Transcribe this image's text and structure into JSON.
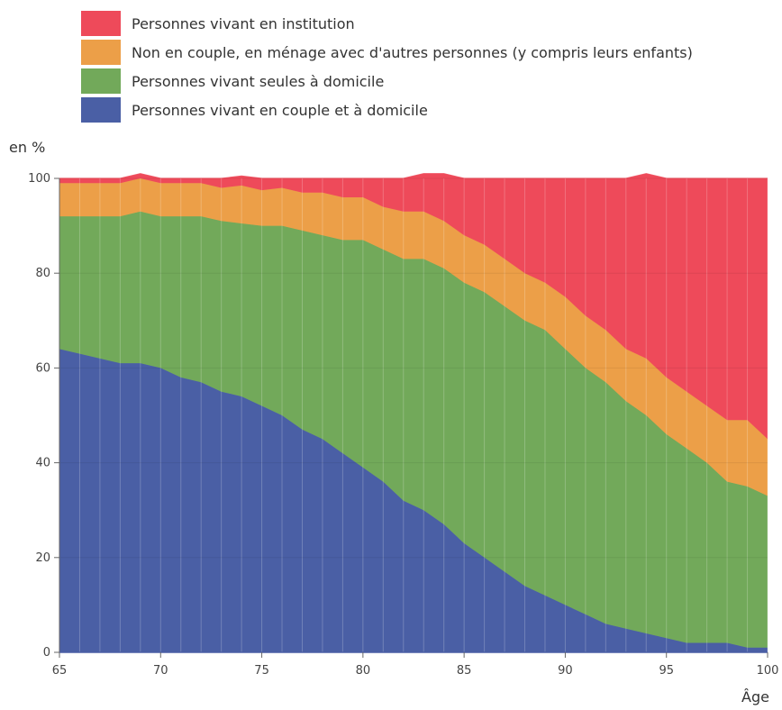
{
  "chart_data": {
    "type": "area",
    "stacked": true,
    "title": "",
    "ylabel": "en %",
    "xlabel": "Âge",
    "xlim": [
      65,
      100
    ],
    "ylim": [
      0,
      100
    ],
    "x_ticks": [
      65,
      70,
      75,
      80,
      85,
      90,
      95,
      100
    ],
    "y_ticks": [
      0,
      20,
      40,
      60,
      80,
      100
    ],
    "grid": "vertical",
    "legend_position": "top-left",
    "x": [
      65,
      66,
      67,
      68,
      69,
      70,
      71,
      72,
      73,
      74,
      75,
      76,
      77,
      78,
      79,
      80,
      81,
      82,
      83,
      84,
      85,
      86,
      87,
      88,
      89,
      90,
      91,
      92,
      93,
      94,
      95,
      96,
      97,
      98,
      99,
      100
    ],
    "series": [
      {
        "name": "Personnes vivant en couple et à domicile",
        "color": "#4a5fa5",
        "values": [
          64,
          63,
          62,
          61,
          61,
          60,
          58,
          57,
          55,
          54,
          52,
          50,
          47,
          45,
          42,
          39,
          36,
          32,
          30,
          27,
          23,
          20,
          17,
          14,
          12,
          10,
          8,
          6,
          5,
          4,
          3,
          2,
          2,
          2,
          1,
          1
        ]
      },
      {
        "name": "Personnes vivant seules à domicile",
        "color": "#72a95a",
        "values": [
          28,
          29,
          30,
          31,
          32,
          32,
          34,
          35,
          36,
          36.5,
          38,
          40,
          42,
          43,
          45,
          48,
          49,
          51,
          53,
          54,
          55,
          56,
          56,
          56,
          56,
          54,
          52,
          51,
          48,
          46,
          43,
          41,
          38,
          34,
          34,
          32
        ]
      },
      {
        "name": "Non en couple, en ménage avec d'autres personnes (y compris leurs enfants)",
        "color": "#ec9f48",
        "values": [
          7,
          7,
          7,
          7,
          7,
          7,
          7,
          7,
          7,
          8,
          7.5,
          8,
          8,
          9,
          9,
          9,
          9,
          10,
          10,
          10,
          10,
          10,
          10,
          10,
          10,
          11,
          11,
          11,
          11,
          12,
          12,
          12,
          12,
          13,
          14,
          12
        ]
      },
      {
        "name": "Personnes vivant en institution",
        "color": "#ee4a5a",
        "values": [
          1,
          1,
          1,
          1,
          1,
          1,
          1,
          1,
          2,
          2,
          2.5,
          2,
          3,
          3,
          4,
          4,
          6,
          7,
          8,
          10,
          12,
          14,
          17,
          20,
          22,
          25,
          29,
          32,
          36,
          39,
          42,
          45,
          48,
          51,
          51,
          55
        ]
      }
    ]
  }
}
